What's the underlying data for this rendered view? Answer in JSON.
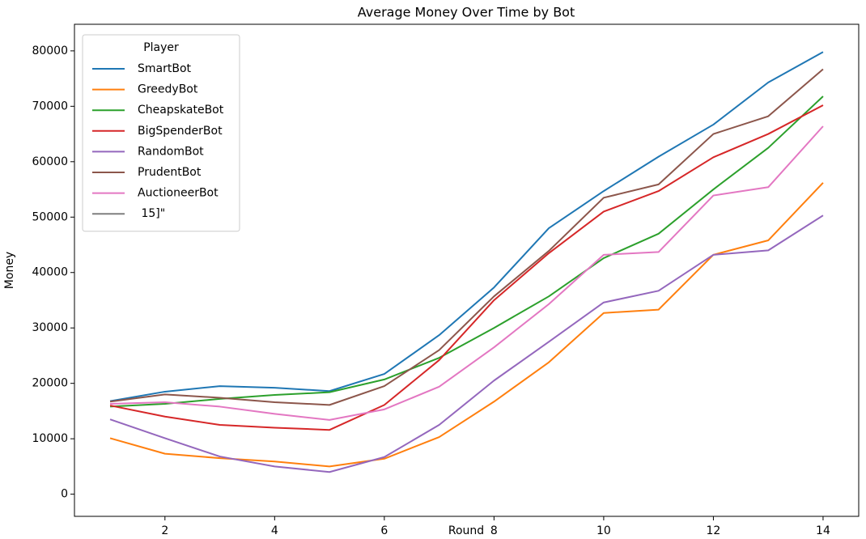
{
  "chart_data": {
    "type": "line",
    "title": "Average Money Over Time by Bot",
    "x_label": "Round",
    "y_label": "Money",
    "legend_title": "Player",
    "legend": "upper left",
    "x": [
      1,
      2,
      3,
      4,
      5,
      6,
      7,
      8,
      9,
      10,
      11,
      12,
      13,
      14
    ],
    "series": [
      {
        "name": "SmartBot",
        "color": "#1f77b4",
        "values": [
          16800,
          18500,
          19500,
          19200,
          18600,
          21700,
          28700,
          37300,
          48000,
          54700,
          60900,
          66700,
          74300,
          79800
        ]
      },
      {
        "name": "GreedyBot",
        "color": "#ff7f0e",
        "values": [
          10100,
          7300,
          6500,
          5900,
          5000,
          6400,
          10300,
          16700,
          23800,
          32700,
          33300,
          43200,
          45800,
          56200
        ]
      },
      {
        "name": "CheapskateBot",
        "color": "#2ca02c",
        "values": [
          15800,
          16300,
          17200,
          17900,
          18400,
          20700,
          24600,
          30000,
          35700,
          42600,
          47000,
          55000,
          62500,
          71800
        ]
      },
      {
        "name": "BigSpenderBot",
        "color": "#d62728",
        "values": [
          16000,
          14000,
          12500,
          12000,
          11600,
          16100,
          24200,
          35000,
          43500,
          51000,
          54700,
          60800,
          65000,
          70200
        ]
      },
      {
        "name": "RandomBot",
        "color": "#9467bd",
        "values": [
          13500,
          10100,
          6800,
          5000,
          4000,
          6700,
          12500,
          20500,
          27500,
          34600,
          36700,
          43200,
          44000,
          50300
        ]
      },
      {
        "name": "PrudentBot",
        "color": "#8c564b",
        "values": [
          16700,
          18000,
          17400,
          16600,
          16100,
          19500,
          26000,
          35700,
          43900,
          53500,
          55900,
          65000,
          68200,
          76700
        ]
      },
      {
        "name": "AuctioneerBot",
        "color": "#e377c2",
        "values": [
          16300,
          16600,
          15800,
          14500,
          13400,
          15300,
          19400,
          26500,
          34300,
          43200,
          43700,
          53900,
          55400,
          66400
        ]
      },
      {
        "name": " 15]\"",
        "color": "#7f7f7f",
        "values": [
          null,
          null,
          null,
          null,
          null,
          null,
          null,
          null,
          null,
          null,
          null,
          null,
          null,
          null
        ]
      }
    ],
    "xlim": [
      0.35,
      14.65
    ],
    "xticks": [
      2,
      4,
      6,
      8,
      10,
      12,
      14
    ],
    "ylim": [
      -4000,
      84800
    ],
    "yticks": [
      0,
      10000,
      20000,
      30000,
      40000,
      50000,
      60000,
      70000,
      80000
    ],
    "grid": false
  }
}
